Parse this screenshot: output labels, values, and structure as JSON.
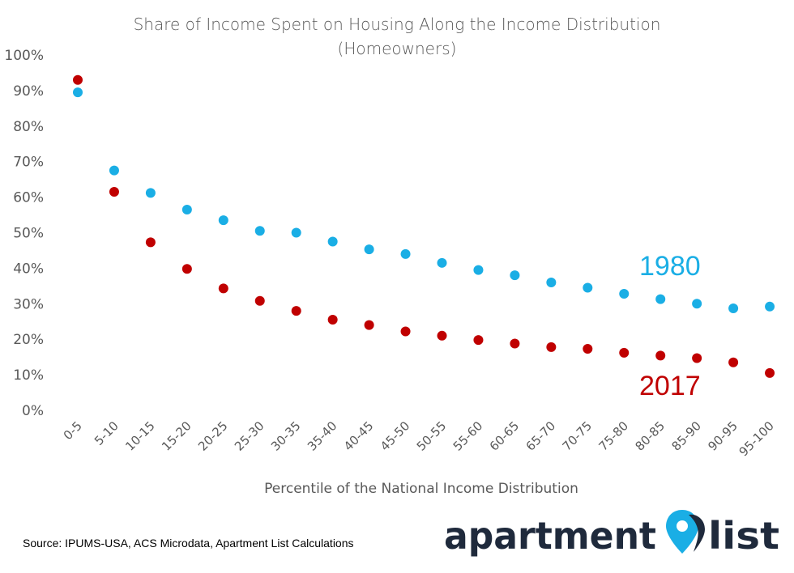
{
  "chart_data": {
    "type": "scatter",
    "title": "Share of Income Spent on Housing Along the Income Distribution",
    "subtitle": "(Homeowners)",
    "xlabel": "Percentile of the National Income Distribution",
    "ylabel": "",
    "ylim": [
      0,
      100
    ],
    "ytick_labels": [
      "0%",
      "10%",
      "20%",
      "30%",
      "40%",
      "50%",
      "60%",
      "70%",
      "80%",
      "90%",
      "100%"
    ],
    "grid": false,
    "legend": "inline labels",
    "categories": [
      "0-5",
      "5-10",
      "10-15",
      "15-20",
      "20-25",
      "25-30",
      "30-35",
      "35-40",
      "40-45",
      "45-50",
      "50-55",
      "55-60",
      "60-65",
      "65-70",
      "70-75",
      "75-80",
      "80-85",
      "85-90",
      "90-95",
      "95-100"
    ],
    "series": [
      {
        "name": "1980",
        "color": "#1aaee5",
        "values": [
          89.5,
          67.5,
          61.2,
          56.5,
          53.5,
          50.5,
          50.0,
          47.5,
          45.3,
          44.0,
          41.5,
          39.5,
          38.0,
          36.0,
          34.5,
          32.8,
          31.3,
          30.0,
          28.7,
          29.2
        ]
      },
      {
        "name": "2017",
        "color": "#c00000",
        "values": [
          93.0,
          61.5,
          47.3,
          39.8,
          34.3,
          30.8,
          28.0,
          25.5,
          24.0,
          22.2,
          21.0,
          19.8,
          18.8,
          17.8,
          17.3,
          16.2,
          15.4,
          14.7,
          13.5,
          10.5
        ]
      }
    ]
  },
  "source": "Source: IPUMS-USA, ACS Microdata, Apartment List Calculations",
  "logo": {
    "word1": "apartment",
    "word2": "list",
    "colors": {
      "text": "#1f2a3c",
      "pin": "#1aaee5"
    }
  }
}
